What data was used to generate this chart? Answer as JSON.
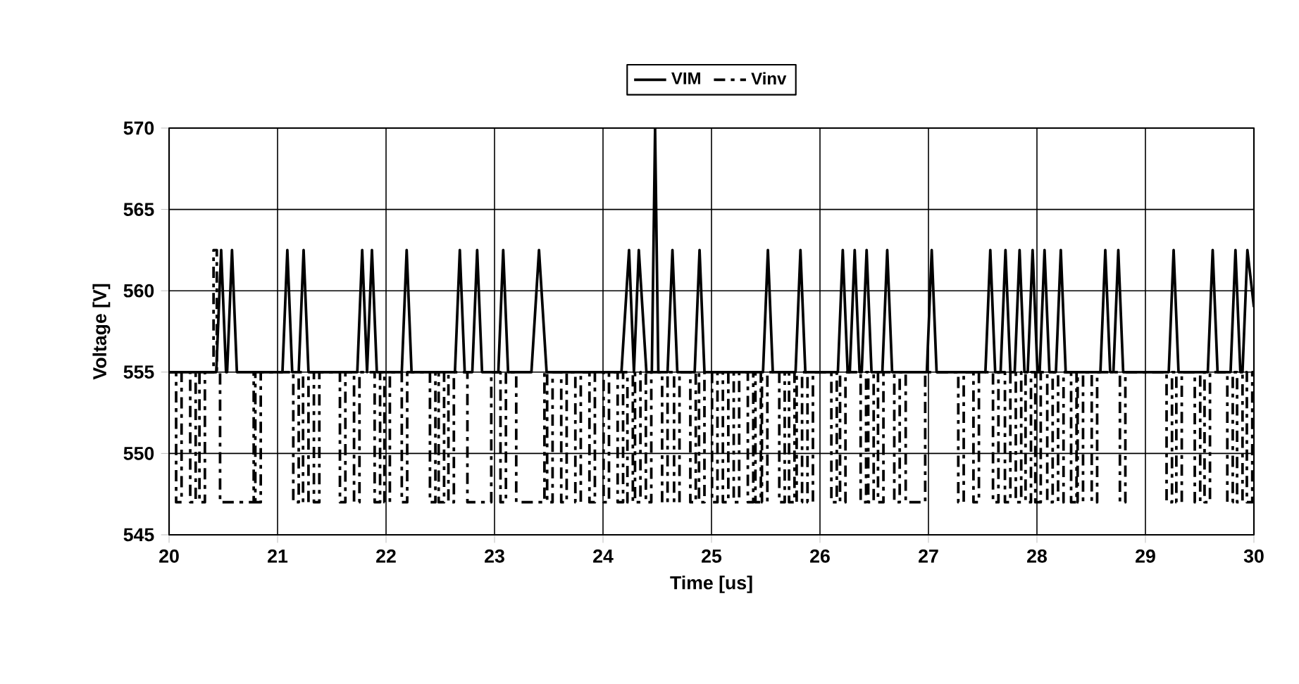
{
  "chart_data": {
    "type": "line",
    "xlabel": "Time [us]",
    "ylabel": "Voltage [V]",
    "xlim": [
      20,
      30
    ],
    "xticks": [
      20,
      21,
      22,
      23,
      24,
      25,
      26,
      27,
      28,
      29,
      30
    ],
    "ylim": [
      545,
      570
    ],
    "yticks": [
      545,
      550,
      555,
      560,
      565,
      570
    ],
    "grid": true,
    "legend": "top",
    "series": [
      {
        "name": "VIM",
        "color": "#000000",
        "line_style": "solid",
        "x": [
          20,
          20.435,
          20.48,
          20.525,
          20.535,
          20.58,
          20.625,
          21.045,
          21.09,
          21.135,
          21.195,
          21.24,
          21.285,
          21.735,
          21.78,
          21.825,
          21.825,
          21.87,
          21.915,
          22.145,
          22.19,
          22.235,
          22.635,
          22.68,
          22.725,
          22.795,
          22.84,
          22.885,
          23.035,
          23.08,
          23.125,
          23.34,
          23.41,
          23.48,
          24.17,
          24.24,
          24.285,
          24.285,
          24.33,
          24.4,
          24.45,
          24.48,
          24.51,
          24.595,
          24.64,
          24.685,
          24.845,
          24.89,
          24.935,
          25.475,
          25.52,
          25.565,
          25.775,
          25.82,
          25.865,
          26.165,
          26.21,
          26.255,
          26.275,
          26.32,
          26.365,
          26.385,
          26.43,
          26.475,
          26.575,
          26.62,
          26.665,
          26.985,
          27.03,
          27.075,
          27.525,
          27.57,
          27.615,
          27.665,
          27.71,
          27.755,
          27.795,
          27.84,
          27.885,
          27.915,
          27.96,
          28.005,
          28.025,
          28.07,
          28.115,
          28.175,
          28.22,
          28.265,
          28.585,
          28.63,
          28.675,
          28.705,
          28.75,
          28.795,
          29.215,
          29.26,
          29.305,
          29.575,
          29.62,
          29.665,
          29.785,
          29.83,
          29.875,
          29.895,
          29.94,
          30
        ],
        "values": [
          555,
          555,
          562.5,
          555,
          555,
          562.5,
          555,
          555,
          562.5,
          555,
          555,
          562.5,
          555,
          555,
          562.5,
          555,
          555,
          562.5,
          555,
          555,
          562.5,
          555,
          555,
          562.5,
          555,
          555,
          562.5,
          555,
          555,
          562.5,
          555,
          555,
          562.5,
          555,
          555,
          562.5,
          555,
          555,
          562.5,
          555,
          555,
          570,
          555,
          555,
          562.5,
          555,
          555,
          562.5,
          555,
          555,
          562.5,
          555,
          555,
          562.5,
          555,
          555,
          562.5,
          555,
          555,
          562.5,
          555,
          555,
          562.5,
          555,
          555,
          562.5,
          555,
          555,
          562.5,
          555,
          555,
          562.5,
          555,
          555,
          562.5,
          555,
          555,
          562.5,
          555,
          555,
          562.5,
          555,
          555,
          562.5,
          555,
          555,
          562.5,
          555,
          555,
          562.5,
          555,
          555,
          562.5,
          555,
          555,
          562.5,
          555,
          555,
          562.5,
          555,
          555,
          562.5,
          555,
          555,
          562.5,
          559
        ]
      },
      {
        "name": "Vinv",
        "type": "step",
        "color": "#000000",
        "line_style": "dashed",
        "x": [
          20,
          20.065,
          20.115,
          20.195,
          20.245,
          20.28,
          20.33,
          20.41,
          20.44,
          20.47,
          20.78,
          20.795,
          20.845,
          21.145,
          21.195,
          21.235,
          21.285,
          21.335,
          21.385,
          21.575,
          21.625,
          21.705,
          21.755,
          21.895,
          21.945,
          21.985,
          22.035,
          22.145,
          22.195,
          22.405,
          22.455,
          22.485,
          22.535,
          22.575,
          22.625,
          22.75,
          22.97,
          23.055,
          23.105,
          23.2,
          23.46,
          23.485,
          23.535,
          23.615,
          23.665,
          23.745,
          23.795,
          23.875,
          23.925,
          24.005,
          24.055,
          24.135,
          24.185,
          24.225,
          24.275,
          24.295,
          24.345,
          24.395,
          24.445,
          24.545,
          24.595,
          24.655,
          24.705,
          24.805,
          24.855,
          24.885,
          24.935,
          25.005,
          25.055,
          25.105,
          25.155,
          25.205,
          25.255,
          25.335,
          25.385,
          25.405,
          25.455,
          25.465,
          25.515,
          25.625,
          25.675,
          25.715,
          25.765,
          25.785,
          25.835,
          25.885,
          25.935,
          26.105,
          26.155,
          26.185,
          26.235,
          26.375,
          26.425,
          26.445,
          26.495,
          26.535,
          26.585,
          26.685,
          26.735,
          26.79,
          26.97,
          27.275,
          27.325,
          27.415,
          27.465,
          27.595,
          27.645,
          27.705,
          27.755,
          27.805,
          27.855,
          27.895,
          27.945,
          27.985,
          28.035,
          28.095,
          28.145,
          28.195,
          28.245,
          28.315,
          28.365,
          28.375,
          28.425,
          28.505,
          28.555,
          28.765,
          28.815,
          29.195,
          29.245,
          29.285,
          29.335,
          29.455,
          29.505,
          29.545,
          29.595,
          29.755,
          29.805,
          29.845,
          29.895,
          29.935,
          29.985,
          30
        ],
        "values": [
          555,
          547,
          555,
          547,
          555,
          547,
          555,
          562.5,
          555,
          547,
          555,
          547,
          555,
          547,
          555,
          547,
          555,
          547,
          555,
          547,
          555,
          547,
          555,
          547,
          555,
          547,
          555,
          547,
          555,
          547,
          555,
          547,
          555,
          547,
          555,
          547,
          555,
          547,
          555,
          547,
          555,
          547,
          555,
          547,
          555,
          547,
          555,
          547,
          555,
          547,
          555,
          547,
          555,
          547,
          555,
          547,
          555,
          547,
          555,
          547,
          555,
          547,
          555,
          547,
          555,
          547,
          555,
          547,
          555,
          547,
          555,
          547,
          555,
          547,
          555,
          547,
          555,
          547,
          555,
          547,
          555,
          547,
          555,
          547,
          555,
          547,
          555,
          547,
          555,
          547,
          555,
          547,
          555,
          547,
          555,
          547,
          555,
          547,
          555,
          547,
          555,
          547,
          555,
          547,
          555,
          547,
          555,
          547,
          555,
          547,
          555,
          547,
          555,
          547,
          555,
          547,
          555,
          547,
          555,
          547,
          555,
          547,
          555,
          547,
          555,
          547,
          555,
          547,
          555,
          547,
          555,
          547,
          555,
          547,
          555,
          547,
          555,
          547,
          555,
          547,
          555,
          555
        ]
      }
    ]
  }
}
